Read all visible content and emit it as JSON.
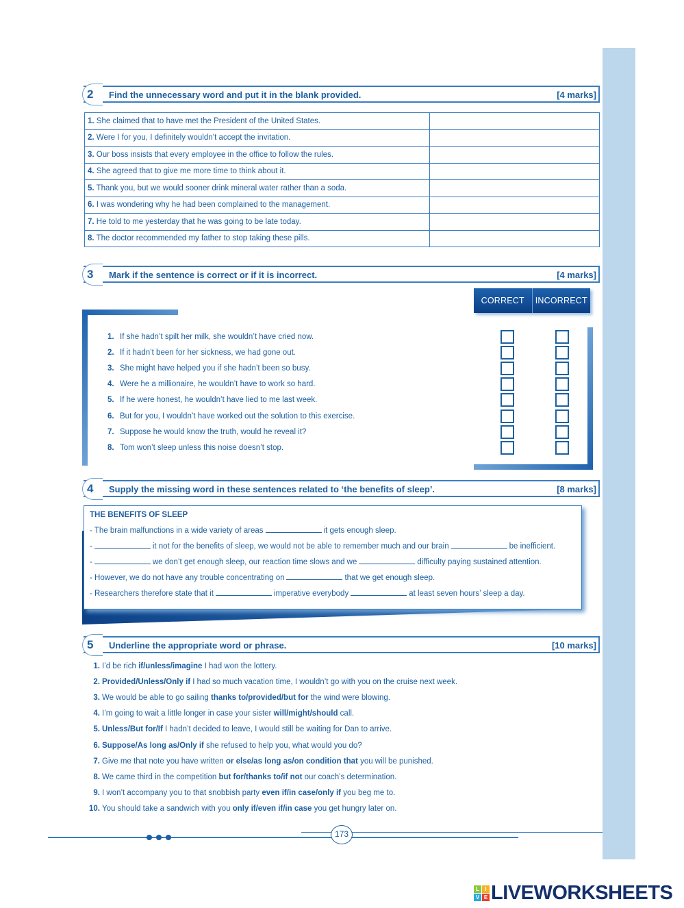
{
  "colors": {
    "text": "#1d5fa0",
    "sidebar": "#bcd6ec",
    "header_bg": "#0b3f85"
  },
  "s2": {
    "num": "2",
    "title": "Find the unnecessary word and put it in the blank provided.",
    "marks": "[4 marks]",
    "rows": [
      {
        "n": "1.",
        "t": "She claimed that to have met the President of the United States."
      },
      {
        "n": "2.",
        "t": "Were I for you, I definitely wouldn’t accept the invitation."
      },
      {
        "n": "3.",
        "t": "Our boss insists that every employee in the office to follow the rules."
      },
      {
        "n": "4.",
        "t": "She agreed that to give me more time to think about it."
      },
      {
        "n": "5.",
        "t": "Thank you, but we would sooner drink mineral water rather than a soda."
      },
      {
        "n": "6.",
        "t": "I was wondering why he had been complained to the management."
      },
      {
        "n": "7.",
        "t": "He told to me yesterday that he was going to be late today."
      },
      {
        "n": "8.",
        "t": "The doctor recommended my father to stop taking these pills."
      }
    ]
  },
  "s3": {
    "num": "3",
    "title": "Mark if the sentence is correct or if it is incorrect.",
    "marks": "[4 marks]",
    "col_correct": "CORRECT",
    "col_incorrect": "INCORRECT",
    "items": [
      {
        "n": "1.",
        "t": "If she hadn’t spilt her milk, she wouldn’t have cried now."
      },
      {
        "n": "2.",
        "t": "If it hadn’t been for her sickness, we had gone out."
      },
      {
        "n": "3.",
        "t": "She might have helped you if she hadn’t been so busy."
      },
      {
        "n": "4.",
        "t": "Were he a millionaire, he wouldn’t have to work so hard."
      },
      {
        "n": "5.",
        "t": "If he were honest, he wouldn’t have lied to me last week."
      },
      {
        "n": "6.",
        "t": "But for you, I wouldn’t have worked out the solution to this exercise."
      },
      {
        "n": "7.",
        "t": "Suppose he would know the truth, would he reveal it?"
      },
      {
        "n": "8.",
        "t": "Tom won’t sleep unless this noise doesn’t stop."
      }
    ]
  },
  "s4": {
    "num": "4",
    "title": "Supply the missing word in these sentences related to ‘the benefits of sleep’.",
    "marks": "[8 marks]",
    "heading": "THE BENEFITS OF SLEEP",
    "lines": [
      [
        "- The brain malfunctions in a wide variety of areas",
        "it gets enough sleep."
      ],
      [
        "-",
        "it not for the benefits of sleep, we would not be able to remember much and our brain",
        "be inefficient."
      ],
      [
        "-",
        "we don’t get enough sleep, our reaction time slows and we",
        "difficulty paying sustained attention."
      ],
      [
        "- However, we do not have any trouble concentrating on",
        "that we get enough sleep."
      ],
      [
        "- Researchers therefore state that it",
        "imperative everybody",
        "at least seven hours’ sleep a day."
      ]
    ]
  },
  "s5": {
    "num": "5",
    "title": "Underline the appropriate word or phrase.",
    "marks": "[10 marks]",
    "items": [
      {
        "n": "1.",
        "a": "I’d be rich ",
        "b": "if/unless/imagine",
        "c": " I had won the lottery."
      },
      {
        "n": "2.",
        "a": "",
        "b": "Provided/Unless/Only if",
        "c": " I had so much vacation time, I wouldn’t go with you on the cruise next week."
      },
      {
        "n": "3.",
        "a": "We would be able to go sailing ",
        "b": "thanks to/provided/but for",
        "c": " the wind were blowing."
      },
      {
        "n": "4.",
        "a": "I’m going to wait a little longer in case your sister ",
        "b": "will/might/should",
        "c": " call."
      },
      {
        "n": "5.",
        "a": "",
        "b": "Unless/But for/If",
        "c": " I hadn’t decided to leave, I would still be waiting for Dan to arrive."
      },
      {
        "n": "6.",
        "a": "",
        "b": "Suppose/As long as/Only if",
        "c": " she refused to help you, what would you do?"
      },
      {
        "n": "7.",
        "a": "Give me that note you have written ",
        "b": "or else/as long as/on condition that",
        "c": " you will be punished."
      },
      {
        "n": "8.",
        "a": "We came third in the competition ",
        "b": "but for/thanks to/if not",
        "c": " our coach’s determination."
      },
      {
        "n": "9.",
        "a": "I won’t accompany you to that snobbish party ",
        "b": "even if/in case/only if",
        "c": " you beg me to."
      },
      {
        "n": "10.",
        "a": "You should take a sandwich with you ",
        "b": "only if/even if/in case",
        "c": " you get hungry later on."
      }
    ]
  },
  "footer": {
    "page": "173"
  },
  "logo": {
    "text": "LIVEWORKSHEETS",
    "tiles": [
      "L",
      "I",
      "V",
      "E"
    ]
  }
}
